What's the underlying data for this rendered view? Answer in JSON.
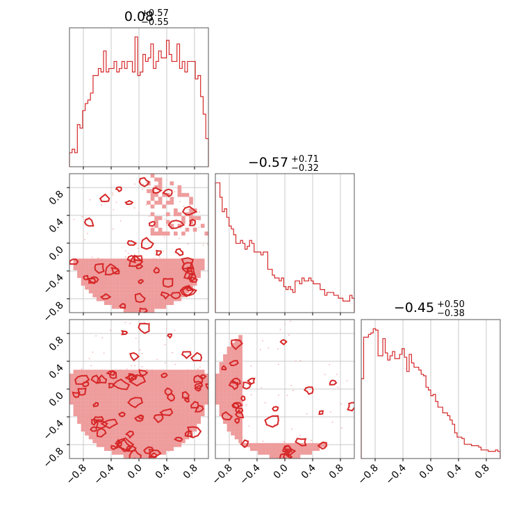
{
  "figure": {
    "type": "corner-plot",
    "color": "#d62728",
    "fill_color": "#ee9c9c",
    "grid_color": "#c8c8c8",
    "axis_range": [
      -1.0,
      1.0
    ],
    "tick_values": [
      -0.8,
      -0.4,
      0.0,
      0.4,
      0.8
    ],
    "tick_labels": [
      "−0.8",
      "−0.4",
      "0.0",
      "0.4",
      "0.8"
    ]
  },
  "titles": [
    {
      "median": "0.08",
      "plus": "+0.57",
      "minus": "−0.55"
    },
    {
      "median": "−0.57",
      "plus": "+0.71",
      "minus": "−0.32"
    },
    {
      "median": "−0.45",
      "plus": "+0.50",
      "minus": "−0.38"
    }
  ],
  "chart_data": [
    {
      "type": "histogram",
      "panel": "diagonal-1",
      "grid": true,
      "bin_edges_range": [
        -1.0,
        1.0
      ],
      "values": [
        4,
        5,
        4,
        12,
        11,
        16,
        18,
        19,
        21,
        26,
        26,
        28,
        27,
        33,
        27,
        28,
        28,
        30,
        27,
        28,
        30,
        28,
        30,
        30,
        27,
        37,
        26,
        27,
        32,
        30,
        31,
        35,
        28,
        30,
        33,
        31,
        31,
        36,
        32,
        30,
        30,
        35,
        28,
        30,
        27,
        30,
        30,
        30,
        25,
        26,
        20,
        15,
        8
      ]
    },
    {
      "type": "histogram",
      "panel": "diagonal-2",
      "grid": true,
      "bin_edges_range": [
        -1.0,
        1.0
      ],
      "values": [
        45,
        45,
        40,
        35,
        36,
        33,
        30,
        29,
        27,
        24,
        24,
        25,
        24,
        22,
        23,
        25,
        24,
        21,
        21,
        21,
        20,
        21,
        21,
        15,
        15,
        13,
        12,
        12,
        11,
        12,
        9,
        8,
        9,
        8,
        7,
        11,
        11,
        10,
        12,
        11,
        11,
        12,
        11,
        10,
        10,
        10,
        8,
        8,
        6,
        7,
        7,
        7,
        6,
        6,
        5,
        5,
        4,
        4,
        4,
        6,
        5
      ]
    },
    {
      "type": "histogram",
      "panel": "diagonal-3",
      "grid": true,
      "bin_edges_range": [
        -1.0,
        1.0
      ],
      "values": [
        56,
        85,
        85,
        87,
        88,
        91,
        90,
        72,
        72,
        84,
        74,
        69,
        72,
        75,
        70,
        70,
        73,
        77,
        71,
        61,
        73,
        67,
        64,
        64,
        62,
        59,
        58,
        50,
        48,
        44,
        45,
        40,
        36,
        36,
        32,
        32,
        30,
        27,
        24,
        18,
        15,
        15,
        14,
        10,
        10,
        10,
        9,
        9,
        9,
        8,
        6,
        6,
        6,
        5,
        5,
        5,
        6,
        5
      ]
    },
    {
      "type": "contour",
      "panel": "x1-vs-x2",
      "shape": "unit-disk samples, x2 concentrated near -0.8",
      "grid": true
    },
    {
      "type": "contour",
      "panel": "x1-vs-x3",
      "shape": "unit-disk samples, x3 concentrated near -0.6",
      "grid": true
    },
    {
      "type": "contour",
      "panel": "x2-vs-x3",
      "shape": "samples in x2^2 + x3^2 <= 1, dense near left edge",
      "grid": true
    }
  ]
}
